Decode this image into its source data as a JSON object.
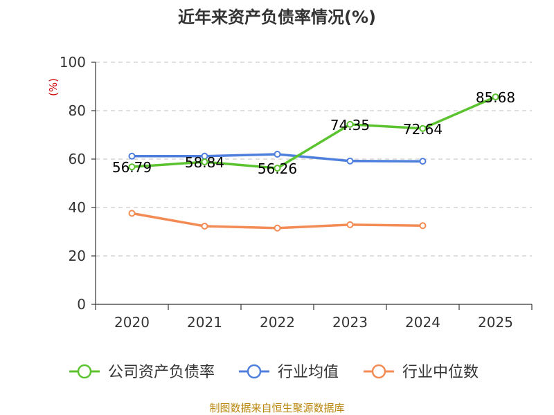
{
  "chart_data": {
    "type": "line",
    "title": "近年来资产负债率情况(%)",
    "ylabel": "(%)",
    "xlabel": "",
    "categories": [
      "2020",
      "2021",
      "2022",
      "2023",
      "2024",
      "2025"
    ],
    "ylim": [
      0,
      100
    ],
    "yticks": [
      0,
      20,
      40,
      60,
      80,
      100
    ],
    "grid": true,
    "legend_position": "bottom",
    "series": [
      {
        "name": "公司资产负债率",
        "color": "#5bc32f",
        "values": [
          56.79,
          58.84,
          56.26,
          74.35,
          72.64,
          85.68
        ],
        "labels": [
          "56.79",
          "58.84",
          "56.26",
          "74.35",
          "72.64",
          "85.68"
        ]
      },
      {
        "name": "行业均值",
        "color": "#4e7fdc",
        "values": [
          61.2,
          61.2,
          62.0,
          59.2,
          59.1,
          null
        ]
      },
      {
        "name": "行业中位数",
        "color": "#f38b54",
        "values": [
          37.6,
          32.3,
          31.5,
          32.9,
          32.5,
          null
        ]
      }
    ]
  },
  "source": "制图数据来自恒生聚源数据库"
}
